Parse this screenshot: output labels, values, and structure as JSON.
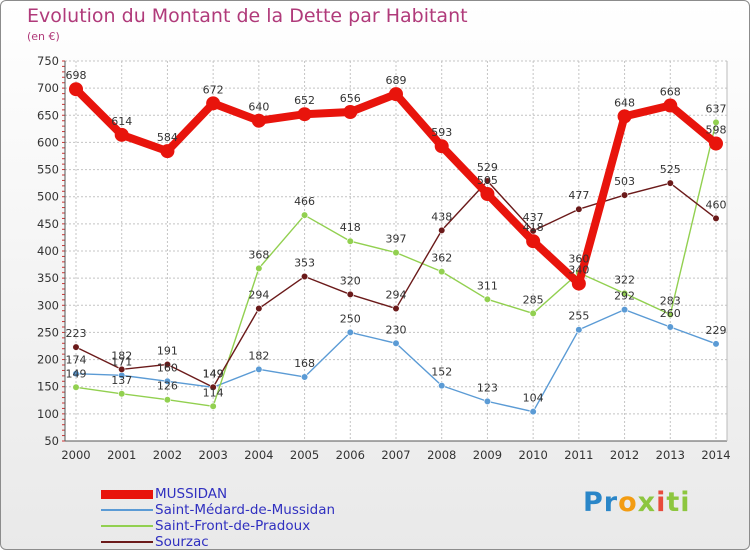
{
  "chart_data": {
    "type": "line",
    "title": "Evolution du Montant de la Dette par Habitant",
    "subtitle": "(en €)",
    "xlabel": "",
    "ylabel": "",
    "ylim": [
      50,
      750
    ],
    "yticks": [
      50,
      100,
      150,
      200,
      250,
      300,
      350,
      400,
      450,
      500,
      550,
      600,
      650,
      700,
      750
    ],
    "grid": true,
    "legend_position": "bottom-left",
    "x": [
      2000,
      2001,
      2002,
      2003,
      2004,
      2005,
      2006,
      2007,
      2008,
      2009,
      2010,
      2011,
      2012,
      2013,
      2014
    ],
    "series": [
      {
        "name": "MUSSIDAN",
        "color": "#e8140c",
        "width": "thick",
        "values": [
          698,
          614,
          584,
          672,
          640,
          652,
          656,
          689,
          593,
          505,
          418,
          340,
          648,
          668,
          598
        ]
      },
      {
        "name": "Saint-Médard-de-Mussidan",
        "color": "#5b9bd5",
        "width": "thin",
        "values": [
          174,
          171,
          160,
          149,
          182,
          168,
          250,
          230,
          152,
          123,
          104,
          255,
          292,
          260,
          229
        ]
      },
      {
        "name": "Saint-Front-de-Pradoux",
        "color": "#92d050",
        "width": "thin",
        "values": [
          149,
          137,
          126,
          114,
          368,
          466,
          418,
          397,
          362,
          311,
          285,
          360,
          322,
          283,
          637
        ]
      },
      {
        "name": "Sourzac",
        "color": "#6b1a1a",
        "width": "thin",
        "values": [
          223,
          182,
          191,
          149,
          294,
          353,
          320,
          294,
          438,
          529,
          437,
          477,
          503,
          525,
          460
        ]
      }
    ]
  },
  "branding": {
    "logo_parts": [
      "Pr",
      "o",
      "x",
      "i",
      "ti"
    ]
  }
}
